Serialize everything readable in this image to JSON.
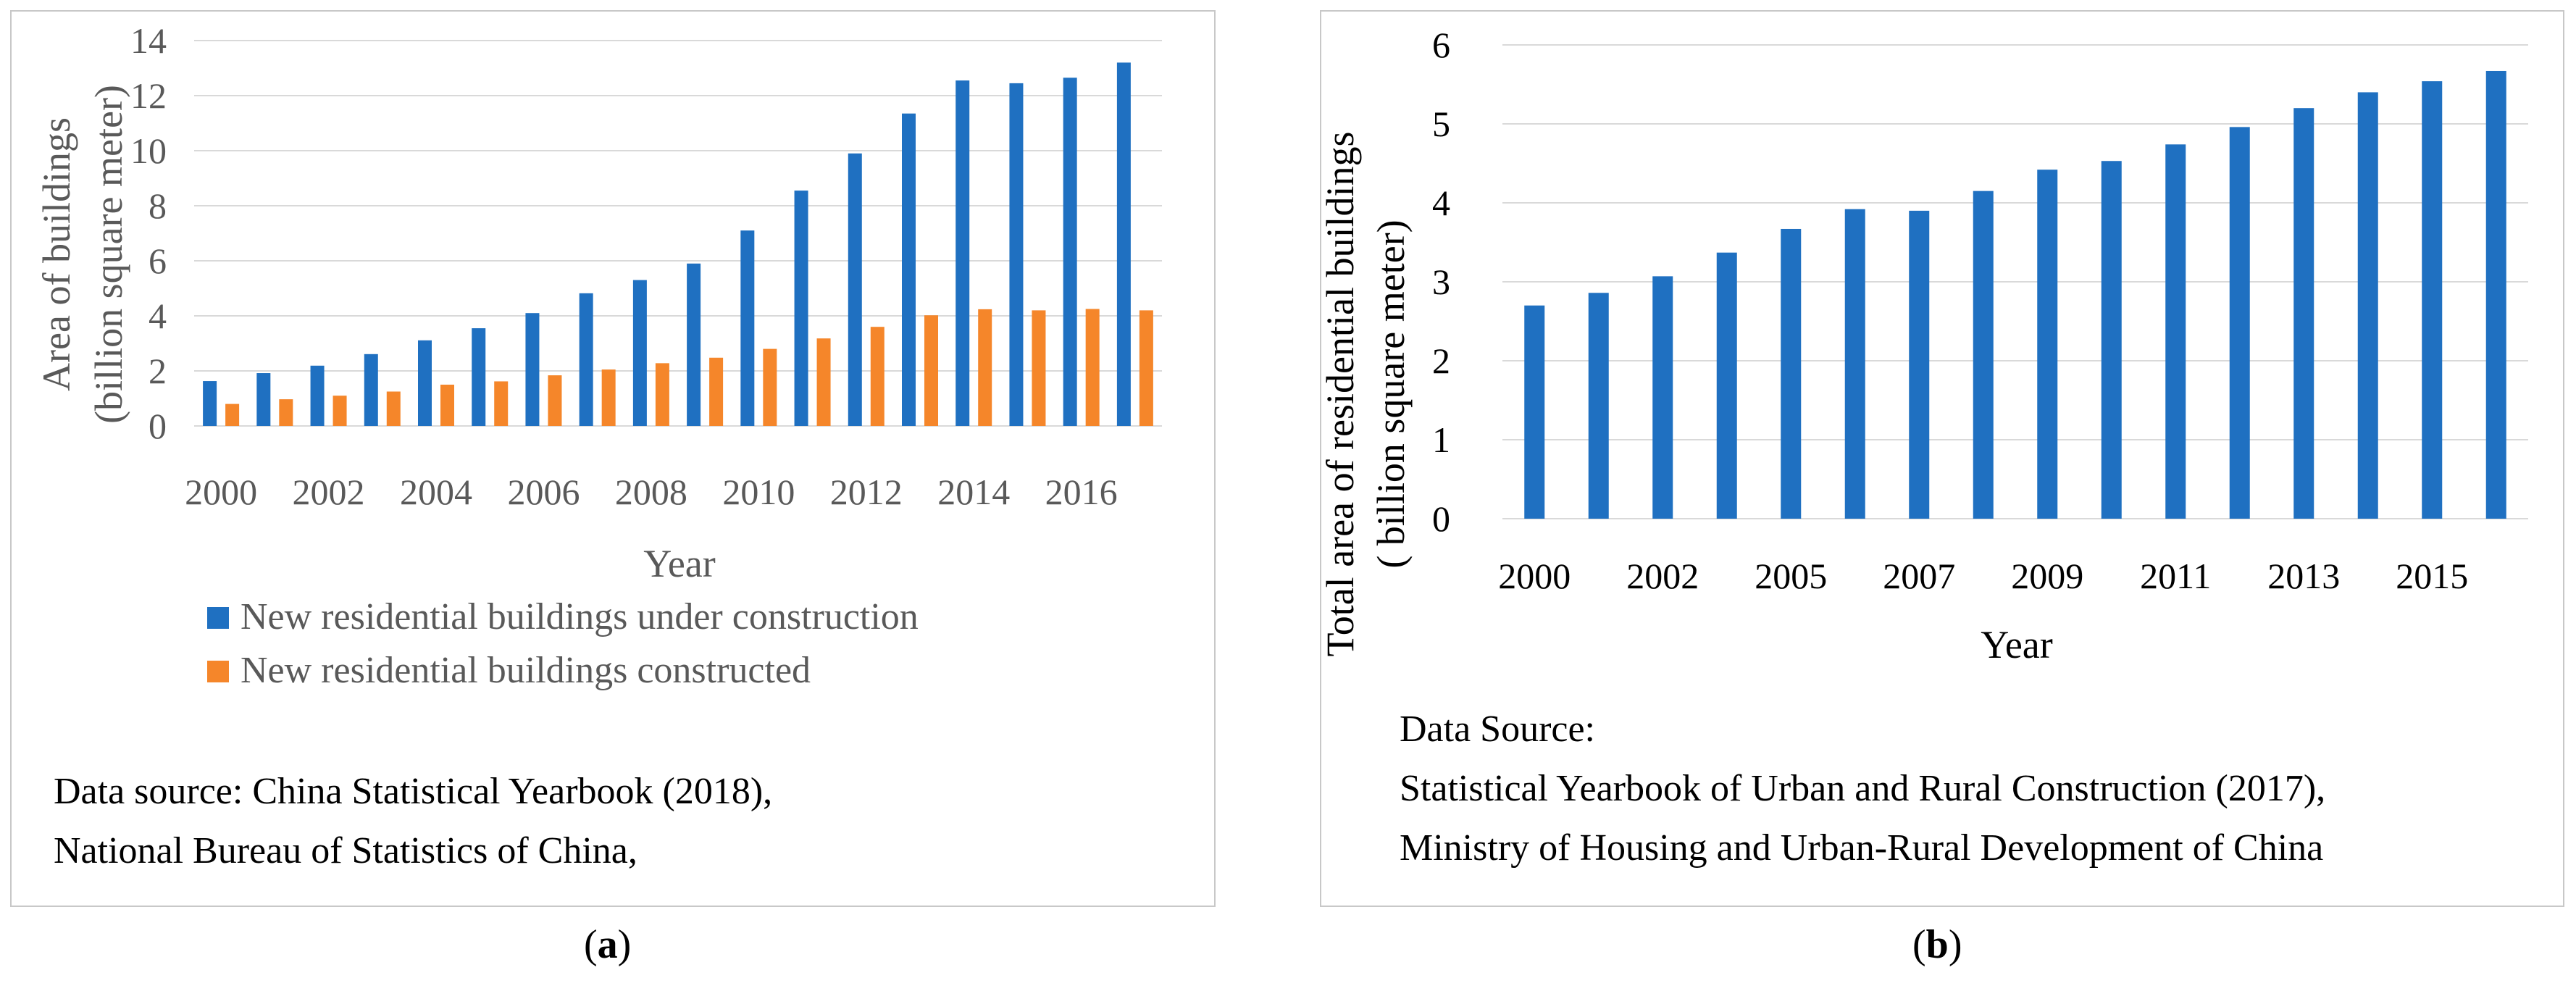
{
  "panel_a": {
    "caption_open": "(",
    "caption_letter": "a",
    "caption_close": ")",
    "source_lines": [
      "Data source: China Statistical Yearbook (2018),",
      "National Bureau of Statistics of China,"
    ]
  },
  "panel_b": {
    "caption_open": "(",
    "caption_letter": "b",
    "caption_close": ")",
    "source_lines": [
      "Data Source:",
      "Statistical Yearbook of Urban and Rural Construction (2017),",
      "Ministry of Housing and Urban-Rural Development of China"
    ]
  },
  "colors": {
    "blue": "#1f70c1",
    "orange": "#f5862a",
    "grid": "#d9d9d9",
    "axis_text": "#595959"
  },
  "chart_data": [
    {
      "id": "chart-a",
      "type": "bar",
      "xlabel": "Year",
      "ylabel_lines": [
        "Area of buildings",
        "(billion square meter)"
      ],
      "ylim": [
        0,
        14
      ],
      "yticks": [
        0,
        2,
        4,
        6,
        8,
        10,
        12,
        14
      ],
      "categories": [
        "2000",
        "2001",
        "2002",
        "2003",
        "2004",
        "2005",
        "2006",
        "2007",
        "2008",
        "2009",
        "2010",
        "2011",
        "2012",
        "2013",
        "2014",
        "2015",
        "2016",
        "2017"
      ],
      "tick_labels": [
        "2000",
        "2002",
        "2004",
        "2006",
        "2008",
        "2010",
        "2012",
        "2014",
        "2016"
      ],
      "grid": true,
      "legend_position": "bottom",
      "series": [
        {
          "name": "New residential buildings under construction",
          "color": "#1f70c1",
          "values": [
            1.63,
            1.92,
            2.19,
            2.61,
            3.11,
            3.55,
            4.1,
            4.82,
            5.3,
            5.9,
            7.1,
            8.55,
            9.9,
            11.35,
            12.55,
            12.45,
            12.65,
            13.2
          ]
        },
        {
          "name": "New residential buildings constructed",
          "color": "#f5862a",
          "values": [
            0.8,
            0.97,
            1.1,
            1.25,
            1.5,
            1.62,
            1.84,
            2.05,
            2.28,
            2.48,
            2.8,
            3.18,
            3.6,
            4.02,
            4.24,
            4.2,
            4.25,
            4.2
          ]
        }
      ]
    },
    {
      "id": "chart-b",
      "type": "bar",
      "xlabel": "Year",
      "ylabel_lines": [
        "Total area of residential buildings",
        "( billion square meter)"
      ],
      "ylim": [
        0,
        6
      ],
      "yticks": [
        0,
        1,
        2,
        3,
        4,
        5,
        6
      ],
      "categories": [
        "2000",
        "2001",
        "2002",
        "2004",
        "2005",
        "2006",
        "2007",
        "2008",
        "2009",
        "2010",
        "2011",
        "2012",
        "2013",
        "2014",
        "2015",
        "2016"
      ],
      "tick_labels": [
        "2000",
        "2002",
        "2005",
        "2007",
        "2009",
        "2011",
        "2013",
        "2015"
      ],
      "grid": true,
      "series": [
        {
          "name": "Total area of residential buildings",
          "color": "#1f70c1",
          "values": [
            2.7,
            2.86,
            3.07,
            3.37,
            3.67,
            3.92,
            3.9,
            4.15,
            4.42,
            4.53,
            4.74,
            4.96,
            5.2,
            5.4,
            5.54,
            5.67
          ]
        }
      ]
    }
  ]
}
